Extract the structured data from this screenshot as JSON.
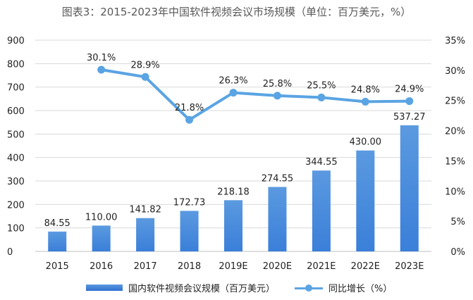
{
  "title": "图表3：2015-2023年中国软件视频会议市场规模（单位：百万美元，%）",
  "colors": {
    "bar": "#3a7fd9",
    "bar_light": "#5b9ae0",
    "line": "#5aa4e3",
    "grid": "#d9d9d9"
  },
  "legend": {
    "bar_label": "国内软件视频会议规模（百万美元）",
    "line_label": "同比增长（%）"
  },
  "chart_data": {
    "type": "bar",
    "categories": [
      "2015",
      "2016",
      "2017",
      "2018",
      "2019E",
      "2020E",
      "2021E",
      "2022E",
      "2023E"
    ],
    "series": [
      {
        "name": "国内软件视频会议规模（百万美元）",
        "type": "bar",
        "axis": "left",
        "values": [
          84.55,
          110.0,
          141.82,
          172.73,
          218.18,
          274.55,
          344.55,
          430.0,
          537.27
        ],
        "labels": [
          "84.55",
          "110.00",
          "141.82",
          "172.73",
          "218.18",
          "274.55",
          "344.55",
          "430.00",
          "537.27"
        ]
      },
      {
        "name": "同比增长（%）",
        "type": "line",
        "axis": "right",
        "values": [
          null,
          30.1,
          28.9,
          21.8,
          26.3,
          25.8,
          25.5,
          24.8,
          24.9
        ],
        "labels": [
          "",
          "30.1%",
          "28.9%",
          "21.8%",
          "26.3%",
          "25.8%",
          "25.5%",
          "24.8%",
          "24.9%"
        ]
      }
    ],
    "y_left": {
      "min": 0,
      "max": 900,
      "ticks": [
        0,
        100,
        200,
        300,
        400,
        500,
        600,
        700,
        800,
        900
      ]
    },
    "y_right": {
      "min": 0,
      "max": 35,
      "ticks": [
        "0%",
        "5%",
        "10%",
        "15%",
        "20%",
        "25%",
        "30%",
        "35%"
      ]
    },
    "grid": true,
    "legend_position": "bottom"
  }
}
